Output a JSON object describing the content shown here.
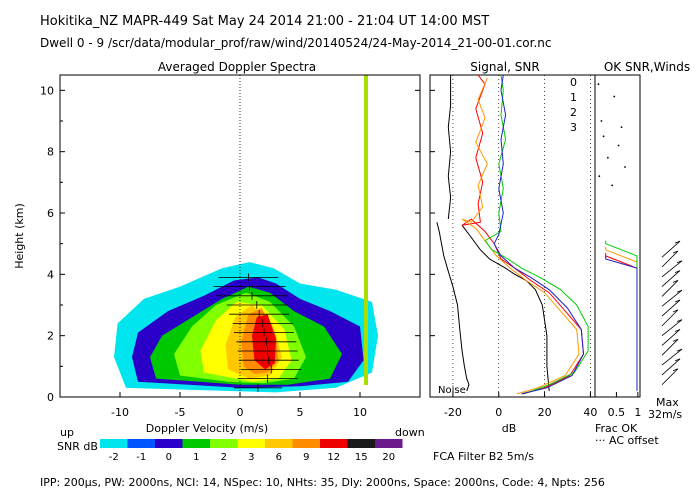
{
  "header": {
    "line1": "Hokitika_NZ  MAPR-449  Sat May 24 2014 21:00 - 21:04 UT 14:00 MST",
    "line2": "Dwell  0 -  9   /scr/data/modular_prof/raw/wind/20140524/24-May-2014_21-00-01.cor.nc"
  },
  "footer": {
    "params": "IPP: 200μs,  PW: 2000ns,  NCI: 14,  NSpec: 10, NHts: 35,  Dly: 2000ns,  Space: 2000ns,  Code: 4,  Npts: 256",
    "filter": "FCA Filter B2   5m/s"
  },
  "legend": {
    "label": "SNR dB",
    "values": [
      "-2",
      "-1",
      "0",
      "1",
      "2",
      "3",
      "6",
      "9",
      "12",
      "15",
      "20"
    ],
    "colors": [
      "#00e5ee",
      "#0055ff",
      "#2a00c8",
      "#00c800",
      "#80ff00",
      "#ffff00",
      "#ffc800",
      "#ff8c00",
      "#ee0000",
      "#1a1a1a",
      "#6a1a8a"
    ]
  },
  "colors": {
    "c0": "#ff0000",
    "c1": "#ff9900",
    "c2": "#00cc00",
    "c3": "#2020cc",
    "wind": "#000000",
    "vline": "#aadd00"
  },
  "chart_data": [
    {
      "type": "heatmap",
      "title": "Averaged Doppler Spectra",
      "xlabel": "Doppler Velocity (m/s)",
      "ylabel": "Height (km)",
      "x_ticks": [
        -10,
        -5,
        0,
        5,
        10
      ],
      "y_ticks": [
        0,
        2,
        4,
        6,
        8,
        10
      ],
      "xlim": [
        -15,
        15
      ],
      "ylim": [
        0,
        10.5
      ],
      "x_left_label": "up",
      "x_right_label": "down",
      "contours": [
        {
          "snr": -2,
          "pts": [
            [
              -9.5,
              0.3
            ],
            [
              -10.5,
              1.3
            ],
            [
              -10.2,
              2.4
            ],
            [
              -8,
              3.2
            ],
            [
              -5,
              3.6
            ],
            [
              -1.5,
              4.2
            ],
            [
              0.8,
              4.4
            ],
            [
              2.8,
              4.2
            ],
            [
              5,
              3.7
            ],
            [
              8,
              3.5
            ],
            [
              11,
              3.1
            ],
            [
              11.5,
              2.0
            ],
            [
              11,
              0.8
            ],
            [
              8,
              0.3
            ],
            [
              3,
              0.15
            ]
          ]
        },
        {
          "snr": 0,
          "pts": [
            [
              -8.5,
              0.5
            ],
            [
              -9,
              1.3
            ],
            [
              -8.5,
              2.1
            ],
            [
              -6,
              2.8
            ],
            [
              -3,
              3.3
            ],
            [
              -0.5,
              3.8
            ],
            [
              1.5,
              3.9
            ],
            [
              3,
              3.7
            ],
            [
              5,
              3.2
            ],
            [
              7.5,
              2.8
            ],
            [
              10,
              2.3
            ],
            [
              10.3,
              1.2
            ],
            [
              9,
              0.5
            ],
            [
              5,
              0.35
            ],
            [
              0,
              0.3
            ]
          ]
        },
        {
          "snr": 1,
          "pts": [
            [
              -7,
              0.6
            ],
            [
              -7.5,
              1.3
            ],
            [
              -6.5,
              2.0
            ],
            [
              -4,
              2.6
            ],
            [
              -1.5,
              3.2
            ],
            [
              0.7,
              3.6
            ],
            [
              2.5,
              3.4
            ],
            [
              4.5,
              2.8
            ],
            [
              7,
              2.3
            ],
            [
              8.5,
              1.4
            ],
            [
              7.5,
              0.6
            ],
            [
              4,
              0.4
            ],
            [
              0,
              0.4
            ]
          ]
        },
        {
          "snr": 2,
          "pts": [
            [
              -5,
              0.7
            ],
            [
              -5.5,
              1.4
            ],
            [
              -4,
              2.3
            ],
            [
              -2,
              3.0
            ],
            [
              0.5,
              3.4
            ],
            [
              2.5,
              3.1
            ],
            [
              4.5,
              2.3
            ],
            [
              5.5,
              1.3
            ],
            [
              4.5,
              0.6
            ],
            [
              2,
              0.45
            ],
            [
              -1,
              0.5
            ]
          ]
        },
        {
          "snr": 3,
          "pts": [
            [
              -3,
              0.8
            ],
            [
              -3.3,
              1.5
            ],
            [
              -2,
              2.5
            ],
            [
              -0.3,
              3.1
            ],
            [
              1.8,
              3.0
            ],
            [
              3.7,
              2.2
            ],
            [
              4.3,
              1.2
            ],
            [
              3.2,
              0.6
            ],
            [
              1,
              0.5
            ]
          ]
        },
        {
          "snr": 6,
          "pts": [
            [
              -1,
              0.9
            ],
            [
              -1.2,
              1.7
            ],
            [
              -0.4,
              2.6
            ],
            [
              1,
              3.0
            ],
            [
              2.8,
              2.3
            ],
            [
              3.5,
              1.3
            ],
            [
              2.5,
              0.7
            ],
            [
              0.8,
              0.6
            ]
          ]
        },
        {
          "snr": 9,
          "pts": [
            [
              0.3,
              1.0
            ],
            [
              0.1,
              1.8
            ],
            [
              0.7,
              2.7
            ],
            [
              1.8,
              2.9
            ],
            [
              3.0,
              2.0
            ],
            [
              3.2,
              1.2
            ],
            [
              2.3,
              0.8
            ],
            [
              1.2,
              0.75
            ]
          ]
        },
        {
          "snr": 12,
          "pts": [
            [
              1.2,
              1.2
            ],
            [
              1.0,
              2.0
            ],
            [
              1.4,
              2.6
            ],
            [
              2.3,
              2.7
            ],
            [
              3.0,
              1.9
            ],
            [
              2.9,
              1.1
            ],
            [
              2.1,
              0.9
            ]
          ]
        }
      ],
      "rain_line_x": 10.5,
      "wind_profile": [
        {
          "h": 0.3,
          "v": 1.5,
          "err": 2.0
        },
        {
          "h": 0.6,
          "v": 2.3,
          "err": 2.5
        },
        {
          "h": 0.9,
          "v": 2.6,
          "err": 2.5
        },
        {
          "h": 1.2,
          "v": 2.4,
          "err": 2.5
        },
        {
          "h": 1.5,
          "v": 2.3,
          "err": 2.5
        },
        {
          "h": 1.8,
          "v": 2.2,
          "err": 2.5
        },
        {
          "h": 2.1,
          "v": 2.0,
          "err": 2.5
        },
        {
          "h": 2.4,
          "v": 1.9,
          "err": 2.5
        },
        {
          "h": 2.7,
          "v": 1.6,
          "err": 2.5
        },
        {
          "h": 3.0,
          "v": 1.4,
          "err": 2.5
        },
        {
          "h": 3.3,
          "v": 1.0,
          "err": 3.0
        },
        {
          "h": 3.6,
          "v": 0.8,
          "err": 3.0
        },
        {
          "h": 3.9,
          "v": 0.7,
          "err": 2.5
        }
      ]
    },
    {
      "type": "line",
      "title": "Signal, SNR",
      "xlabel": "dB",
      "x_ticks": [
        -20,
        0,
        20,
        40
      ],
      "xlim": [
        -30,
        42
      ],
      "ylim": [
        0,
        10.5
      ],
      "noise_label": "Noise",
      "series_labels": [
        "0",
        "1",
        "2",
        "3"
      ],
      "noise": [
        [
          -14,
          0.2
        ],
        [
          -13,
          0.4
        ],
        [
          -14,
          0.6
        ],
        [
          -15,
          1.0
        ],
        [
          -16,
          1.5
        ],
        [
          -17,
          2.2
        ],
        [
          -18,
          3.0
        ],
        [
          -20,
          3.6
        ],
        [
          -22,
          4.1
        ],
        [
          -24,
          4.6
        ],
        [
          -25,
          5.0
        ],
        [
          -26,
          5.4
        ],
        [
          -27,
          5.7
        ]
      ],
      "signal": [
        [
          22,
          0.2
        ],
        [
          21,
          1.0
        ],
        [
          21,
          2.0
        ],
        [
          19,
          3.0
        ],
        [
          16,
          3.5
        ],
        [
          12,
          3.8
        ],
        [
          7,
          4.0
        ],
        [
          3,
          4.2
        ],
        [
          -4,
          4.5
        ],
        [
          -8,
          4.8
        ],
        [
          -12,
          5.2
        ],
        [
          -16,
          5.6
        ]
      ],
      "noise_upper": [
        [
          -22,
          5.8
        ],
        [
          -21,
          6.5
        ],
        [
          -22,
          7.2
        ],
        [
          -21,
          8.0
        ],
        [
          -22,
          8.8
        ],
        [
          -21,
          9.5
        ],
        [
          -21,
          10.5
        ]
      ],
      "snr": [
        {
          "name": "0",
          "pts": [
            [
              10,
              0.1
            ],
            [
              20,
              0.3
            ],
            [
              31,
              0.7
            ],
            [
              37,
              1.4
            ],
            [
              36,
              2.2
            ],
            [
              29,
              2.8
            ],
            [
              22,
              3.4
            ],
            [
              14,
              3.8
            ],
            [
              7,
              4.2
            ],
            [
              1,
              4.5
            ],
            [
              -2,
              5.0
            ],
            [
              -6,
              5.4
            ],
            [
              -12,
              5.8
            ],
            [
              -16,
              5.6
            ],
            [
              -8,
              5.7
            ],
            [
              -9,
              6.3
            ],
            [
              -7,
              7.0
            ],
            [
              -10,
              7.8
            ],
            [
              -7,
              8.6
            ],
            [
              -10,
              9.4
            ],
            [
              -6,
              10.2
            ],
            [
              -9,
              10.5
            ]
          ]
        },
        {
          "name": "1",
          "pts": [
            [
              8,
              0.1
            ],
            [
              17,
              0.3
            ],
            [
              29,
              0.7
            ],
            [
              35,
              1.4
            ],
            [
              34,
              2.2
            ],
            [
              27,
              2.8
            ],
            [
              20,
              3.4
            ],
            [
              12,
              3.8
            ],
            [
              5,
              4.2
            ],
            [
              -1,
              4.6
            ],
            [
              -5,
              5.0
            ],
            [
              -10,
              5.5
            ],
            [
              -16,
              5.8
            ],
            [
              -12,
              5.7
            ],
            [
              -7,
              6.2
            ],
            [
              -9,
              6.9
            ],
            [
              -5,
              7.6
            ],
            [
              -10,
              8.3
            ],
            [
              -6,
              9.1
            ],
            [
              -9,
              9.7
            ],
            [
              -5,
              10.4
            ]
          ]
        },
        {
          "name": "2",
          "pts": [
            [
              11,
              0.1
            ],
            [
              22,
              0.4
            ],
            [
              33,
              0.8
            ],
            [
              39,
              1.5
            ],
            [
              39,
              2.3
            ],
            [
              34,
              3.0
            ],
            [
              27,
              3.5
            ],
            [
              18,
              3.9
            ],
            [
              10,
              4.2
            ],
            [
              4,
              4.5
            ],
            [
              -3,
              4.8
            ],
            [
              -6,
              5.1
            ],
            [
              1,
              5.4
            ],
            [
              0,
              6.0
            ],
            [
              2,
              6.8
            ],
            [
              0,
              7.6
            ],
            [
              3,
              8.4
            ],
            [
              1,
              9.2
            ],
            [
              2,
              10.0
            ],
            [
              1,
              10.5
            ]
          ]
        },
        {
          "name": "3",
          "pts": [
            [
              10,
              0.1
            ],
            [
              21,
              0.3
            ],
            [
              32,
              0.7
            ],
            [
              37,
              1.4
            ],
            [
              36,
              2.2
            ],
            [
              30,
              2.9
            ],
            [
              22,
              3.5
            ],
            [
              14,
              3.9
            ],
            [
              7,
              4.2
            ],
            [
              1,
              4.6
            ],
            [
              -2,
              5.0
            ],
            [
              0,
              5.3
            ],
            [
              2,
              6.0
            ],
            [
              0,
              6.8
            ],
            [
              2,
              7.6
            ],
            [
              1,
              8.4
            ],
            [
              3,
              9.2
            ],
            [
              1,
              10.0
            ],
            [
              2,
              10.5
            ]
          ]
        }
      ]
    },
    {
      "type": "line",
      "title": "OK SNR,Winds",
      "xlabel": "Frac OK",
      "xlabel2": "AC offset",
      "x_ticks": [
        0.5,
        1
      ],
      "xlim": [
        0,
        1.05
      ],
      "ylim": [
        0,
        10.5
      ],
      "frac_ok": [
        {
          "name": "0",
          "pts": [
            [
              0.25,
              4.7
            ],
            [
              0.25,
              4.6
            ],
            [
              0.98,
              4.2
            ],
            [
              0.98,
              0.2
            ]
          ]
        },
        {
          "name": "1",
          "pts": [
            [
              0.25,
              4.9
            ],
            [
              0.25,
              4.8
            ],
            [
              0.98,
              4.4
            ],
            [
              0.98,
              0.2
            ]
          ]
        },
        {
          "name": "2",
          "pts": [
            [
              0.25,
              5.1
            ],
            [
              0.25,
              5.0
            ],
            [
              0.98,
              4.6
            ],
            [
              0.98,
              0.2
            ]
          ]
        },
        {
          "name": "3",
          "pts": [
            [
              0.25,
              4.6
            ],
            [
              0.25,
              4.5
            ],
            [
              0.98,
              4.2
            ],
            [
              0.98,
              0.2
            ]
          ]
        }
      ],
      "scatter": [
        [
          0.08,
          10.2
        ],
        [
          0.45,
          9.8
        ],
        [
          0.15,
          9.0
        ],
        [
          0.62,
          8.8
        ],
        [
          0.2,
          8.5
        ],
        [
          0.55,
          8.2
        ],
        [
          0.3,
          7.8
        ],
        [
          0.7,
          7.5
        ],
        [
          0.1,
          7.2
        ],
        [
          0.4,
          6.9
        ]
      ],
      "winds_max": "Max",
      "winds_scale": "32m/s"
    }
  ]
}
